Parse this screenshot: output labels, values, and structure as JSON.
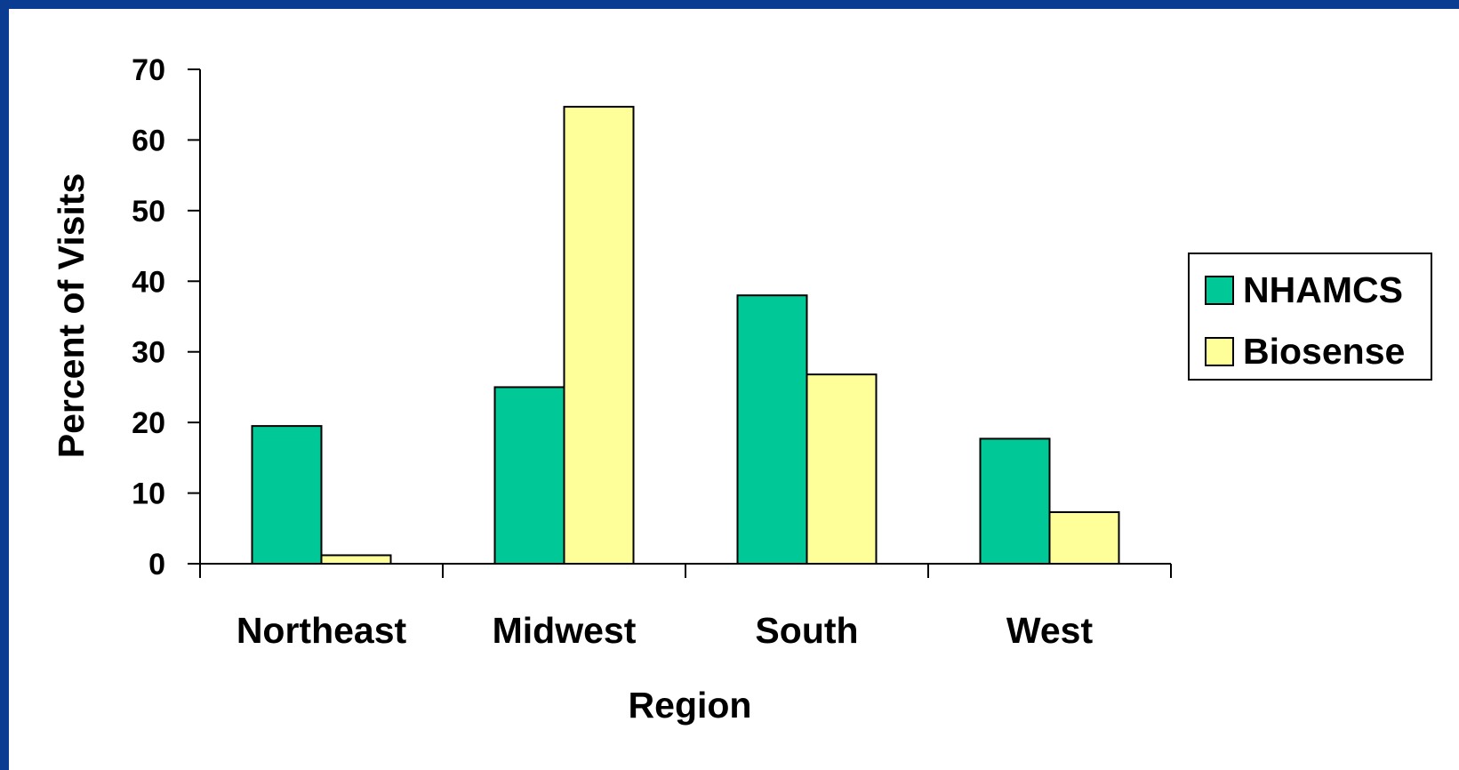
{
  "colors": {
    "border": "#0a3d91",
    "NHAMCS": "#00c896",
    "Biosense": "#ffff99",
    "outline": "#000000"
  },
  "chart_data": {
    "type": "bar",
    "categories": [
      "Northeast",
      "Midwest",
      "South",
      "West"
    ],
    "series": [
      {
        "name": "NHAMCS",
        "values": [
          19.5,
          25,
          38,
          17.7
        ]
      },
      {
        "name": "Biosense",
        "values": [
          1.2,
          64.7,
          26.8,
          7.3
        ]
      }
    ],
    "xlabel": "Region",
    "ylabel": "Percent of Visits",
    "ylim": [
      0,
      70
    ],
    "yticks": [
      0,
      10,
      20,
      30,
      40,
      50,
      60,
      70
    ],
    "grid": false,
    "legend": "right"
  }
}
